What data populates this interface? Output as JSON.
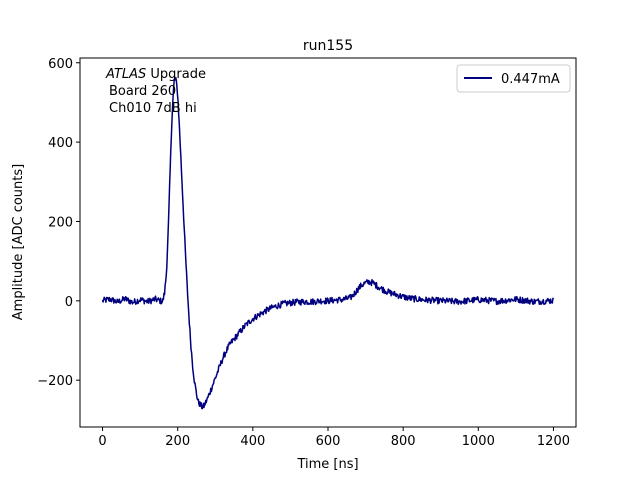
{
  "chart_data": {
    "type": "line",
    "title": "run155",
    "xlabel": "Time [ns]",
    "ylabel": "Amplitude [ADC counts]",
    "xlim": [
      -60,
      1260
    ],
    "ylim": [
      -318,
      612
    ],
    "xticks": [
      0,
      200,
      400,
      600,
      800,
      1000,
      1200
    ],
    "yticks": [
      -200,
      0,
      200,
      400,
      600
    ],
    "xtick_labels": [
      "0",
      "200",
      "400",
      "600",
      "800",
      "1000",
      "1200"
    ],
    "ytick_labels": [
      "−200",
      "0",
      "200",
      "400",
      "600"
    ],
    "grid": false,
    "legend_position": "upper-right",
    "annotation": {
      "italic": "ATLAS",
      "rest": " Upgrade",
      "line2": "Board 260",
      "line3": "Ch010 7dB hi"
    },
    "series": [
      {
        "name": "0.447mA",
        "color": "#00007f",
        "x": [
          0,
          20,
          40,
          60,
          80,
          100,
          120,
          140,
          160,
          165,
          170,
          175,
          180,
          185,
          190,
          195,
          200,
          205,
          210,
          215,
          220,
          225,
          230,
          235,
          240,
          245,
          250,
          255,
          260,
          265,
          270,
          275,
          280,
          290,
          300,
          310,
          320,
          330,
          340,
          360,
          380,
          400,
          420,
          440,
          460,
          480,
          500,
          520,
          540,
          560,
          580,
          600,
          620,
          640,
          660,
          670,
          680,
          690,
          700,
          710,
          720,
          730,
          740,
          760,
          780,
          800,
          820,
          840,
          860,
          880,
          900,
          950,
          1000,
          1050,
          1100,
          1150,
          1200
        ],
        "y": [
          0,
          4,
          -3,
          5,
          -4,
          3,
          -2,
          4,
          -2,
          20,
          70,
          180,
          330,
          470,
          550,
          560,
          520,
          430,
          330,
          230,
          130,
          40,
          -40,
          -110,
          -165,
          -205,
          -235,
          -255,
          -262,
          -268,
          -265,
          -255,
          -245,
          -220,
          -195,
          -170,
          -145,
          -125,
          -108,
          -85,
          -62,
          -45,
          -33,
          -22,
          -14,
          -8,
          -5,
          -3,
          -2,
          -2,
          0,
          0,
          2,
          3,
          8,
          18,
          30,
          40,
          45,
          48,
          45,
          38,
          32,
          22,
          16,
          10,
          6,
          4,
          2,
          1,
          0,
          -2,
          3,
          -1,
          4,
          -2,
          1
        ]
      }
    ]
  }
}
